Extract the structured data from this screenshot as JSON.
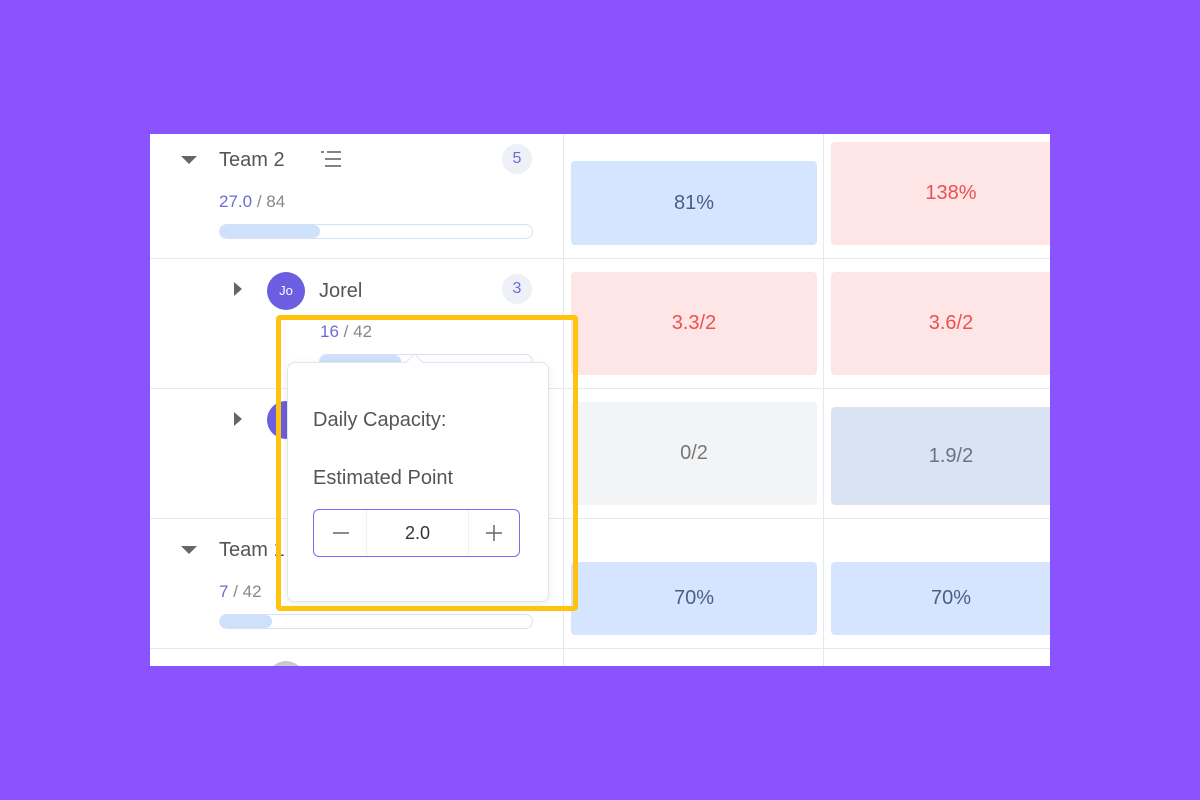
{
  "rows": [
    {
      "name": "Team 2",
      "count": 5,
      "done": "27.0",
      "total": 84,
      "cells": [
        "81%",
        "138%"
      ]
    },
    {
      "avatar": "Jo",
      "name": "Jorel",
      "count": 3,
      "done": 16,
      "total": 42,
      "cells": [
        "3.3/2",
        "3.6/2"
      ]
    },
    {
      "cells": [
        "0/2",
        "1.9/2"
      ]
    },
    {
      "name": "Team 1",
      "done": 7,
      "total": 42,
      "cells": [
        "70%",
        "70%"
      ]
    }
  ],
  "separator": "/",
  "popup": {
    "title": "Daily Capacity:",
    "label": "Estimated Point",
    "value": "2.0"
  }
}
